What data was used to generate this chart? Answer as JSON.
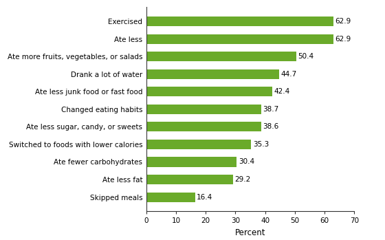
{
  "categories": [
    "Skipped meals",
    "Ate less fat",
    "Ate fewer carbohydrates",
    "Switched to foods with lower calories",
    "Ate less sugar, candy, or sweets",
    "Changed eating habits",
    "Ate less junk food or fast food",
    "Drank a lot of water",
    "Ate more fruits, vegetables, or salads",
    "Ate less",
    "Exercised"
  ],
  "values": [
    16.4,
    29.2,
    30.4,
    35.3,
    38.6,
    38.7,
    42.4,
    44.7,
    50.4,
    62.9,
    62.9
  ],
  "bar_color": "#6aaa2a",
  "xlabel": "Percent",
  "xlim": [
    0,
    70
  ],
  "xticks": [
    0,
    10,
    20,
    30,
    40,
    50,
    60,
    70
  ],
  "background_color": "#ffffff",
  "label_fontsize": 7.5,
  "value_fontsize": 7.5,
  "xlabel_fontsize": 8.5
}
